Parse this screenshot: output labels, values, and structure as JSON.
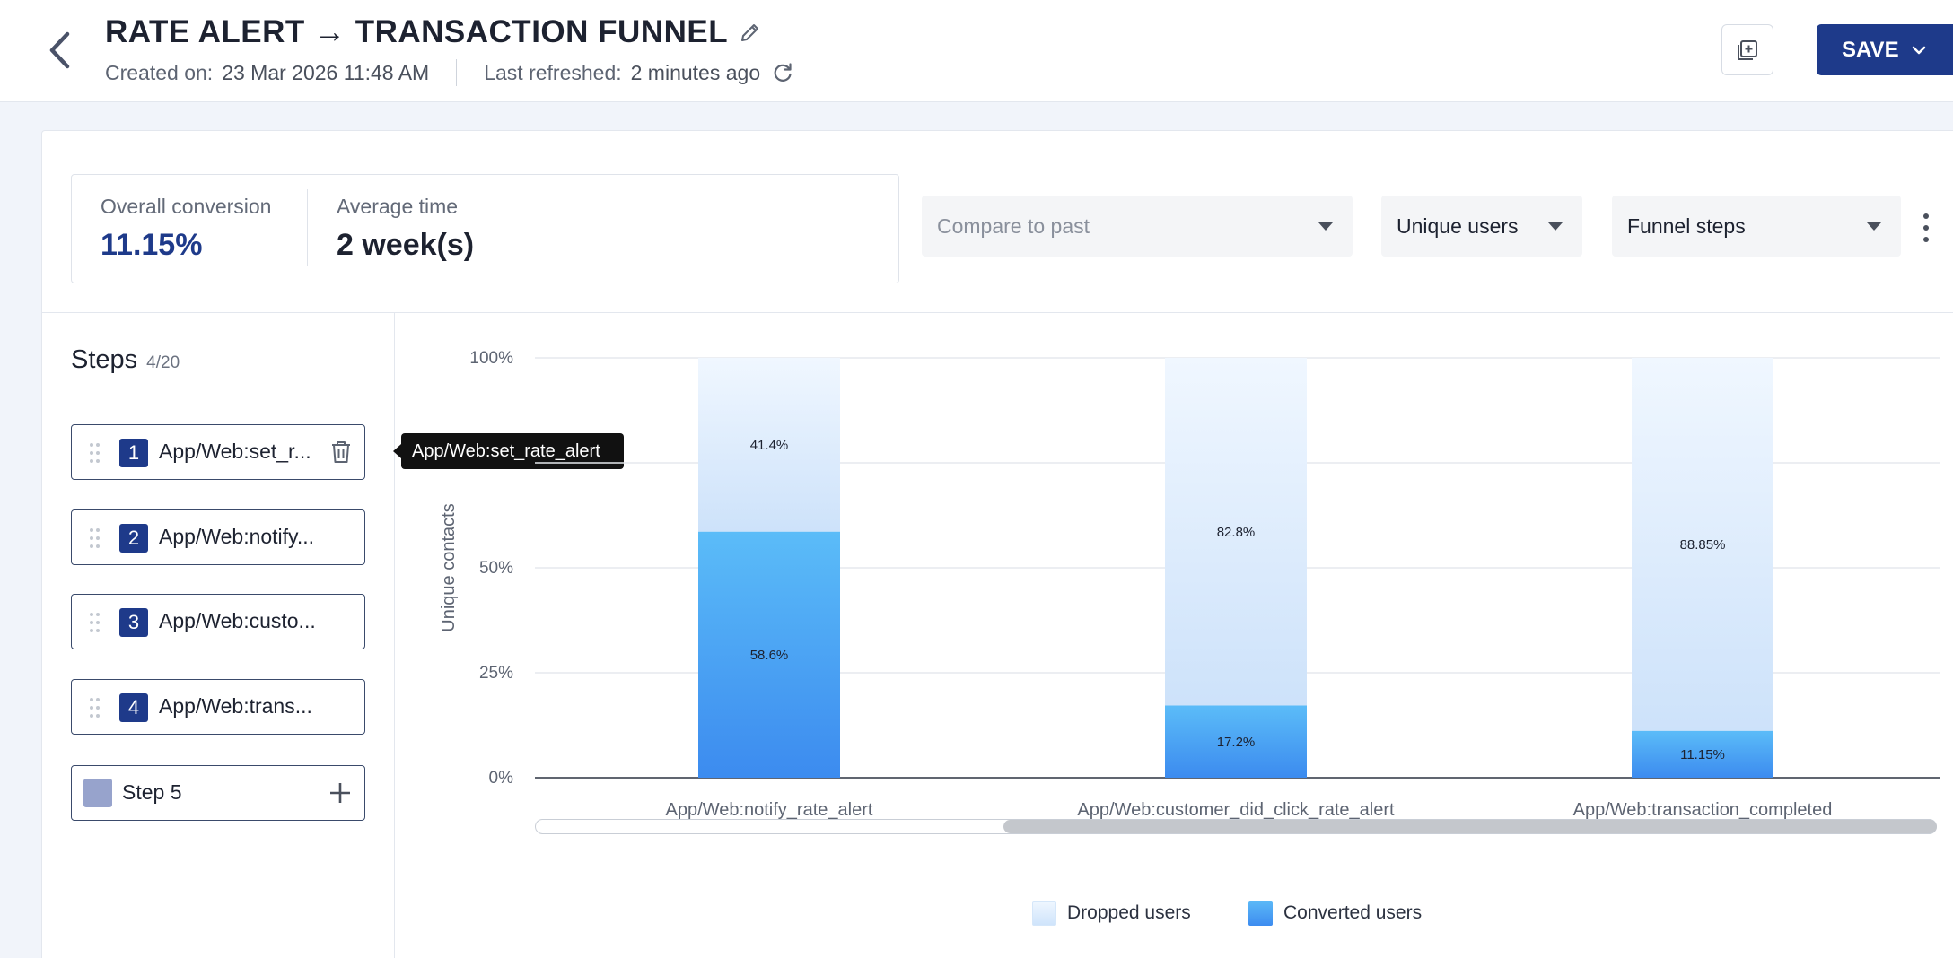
{
  "header": {
    "title": "RATE ALERT → TRANSACTION FUNNEL",
    "created_label": "Created on:",
    "created_value": "23 Mar 2026 11:48 AM",
    "refreshed_label": "Last refreshed:",
    "refreshed_value": "2 minutes ago",
    "save_label": "SAVE"
  },
  "stats": {
    "overall_label": "Overall conversion",
    "overall_value": "11.15%",
    "avg_label": "Average time",
    "avg_value": "2 week(s)"
  },
  "controls": {
    "compare_placeholder": "Compare to past",
    "metric_value": "Unique users",
    "view_value": "Funnel steps"
  },
  "steps": {
    "title": "Steps",
    "count": "4/20",
    "items": [
      {
        "num": "1",
        "label": "App/Web:set_r..."
      },
      {
        "num": "2",
        "label": "App/Web:notify..."
      },
      {
        "num": "3",
        "label": "App/Web:custo..."
      },
      {
        "num": "4",
        "label": "App/Web:trans..."
      }
    ],
    "add_label": "Step 5",
    "tooltip": "App/Web:set_rate_alert"
  },
  "colors": {
    "accent": "#1e3a8a",
    "converted_top": "#5bbcf8",
    "converted_bottom": "#3c8bef",
    "dropped_top": "#f0f7ff",
    "dropped_bottom": "#cde2fa"
  },
  "chart_data": {
    "type": "bar",
    "stacked": true,
    "ylabel": "Unique contacts",
    "yticks": [
      "0%",
      "25%",
      "50%",
      "100%"
    ],
    "ytick_values": [
      0,
      25,
      50,
      100
    ],
    "ylim": [
      0,
      100
    ],
    "categories": [
      "App/Web:notify_rate_alert",
      "App/Web:customer_did_click_rate_alert",
      "App/Web:transaction_completed"
    ],
    "series": [
      {
        "name": "Converted users",
        "values": [
          58.6,
          17.2,
          11.15
        ],
        "labels": [
          "58.6%",
          "17.2%",
          "11.15%"
        ]
      },
      {
        "name": "Dropped users",
        "values": [
          41.4,
          82.8,
          88.85
        ],
        "labels": [
          "41.4%",
          "82.8%",
          "88.85%"
        ]
      }
    ],
    "legend_position": "bottom-center",
    "grid": true
  }
}
